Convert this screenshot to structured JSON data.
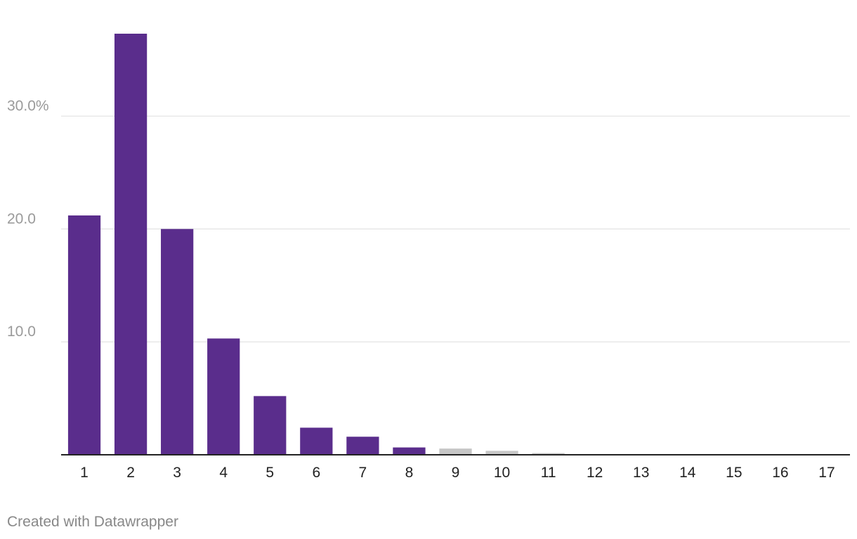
{
  "chart_data": {
    "type": "bar",
    "title": "",
    "xlabel": "",
    "ylabel": "",
    "categories": [
      "1",
      "2",
      "3",
      "4",
      "5",
      "6",
      "7",
      "8",
      "9",
      "10",
      "11",
      "12",
      "13",
      "14",
      "15",
      "16",
      "17"
    ],
    "values": [
      21.2,
      37.3,
      20.0,
      10.3,
      5.2,
      2.4,
      1.6,
      0.65,
      0.55,
      0.35,
      0.15,
      0.04,
      0.06,
      0.03,
      0.02,
      0.01,
      0.01
    ],
    "ylim": [
      0,
      37.3
    ],
    "yticks": [
      {
        "value": 10,
        "label": "10.0"
      },
      {
        "value": 20,
        "label": "20.0"
      },
      {
        "value": 30,
        "label": "30.0%"
      }
    ],
    "grid": true,
    "legend": "none",
    "colors": {
      "highlight": "#5a2d8c",
      "muted": "#c6c6c6",
      "grid": "#e3e3e3",
      "axis": "#222222",
      "tick_label": "#9a9a9a",
      "category_label": "#222222"
    },
    "highlighted_count": 8
  },
  "footer": {
    "credit": "Created with Datawrapper"
  }
}
